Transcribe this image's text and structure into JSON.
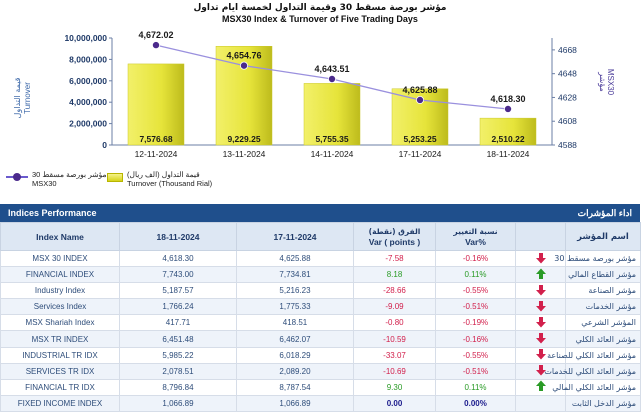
{
  "chart": {
    "title_ar": "مؤشر بورصة مسقط 30 وقيمة التداول لخمسة ايام تداول",
    "title_en": "MSX30 Index & Turnover of Five Trading Days",
    "left_axis_label_ar": "قيمة التداول",
    "left_axis_label_en": "Turnover",
    "right_axis_label_ar": "مؤشر",
    "right_axis_label_en": "MSX30"
  },
  "chart_data": {
    "type": "bar",
    "title": "MSX30 Index & Turnover of Five Trading Days",
    "categories": [
      "12-11-2024",
      "13-11-2024",
      "14-11-2024",
      "17-11-2024",
      "18-11-2024"
    ],
    "series": [
      {
        "name": "Turnover (Thousand Rial)",
        "type": "bar",
        "values": [
          7576.68,
          9229.25,
          5755.35,
          5253.25,
          2510.22
        ],
        "value_labels": [
          "7,576.68",
          "9,229.25",
          "5,755.35",
          "5,253.25",
          "2,510.22"
        ],
        "color": "#e6e43a"
      },
      {
        "name": "MSX30",
        "type": "line",
        "values": [
          4672.02,
          4654.76,
          4643.51,
          4625.88,
          4618.3
        ],
        "value_labels": [
          "4,672.02",
          "4,654.76",
          "4,643.51",
          "4,625.88",
          "4,618.30"
        ],
        "color": "#8f85d9"
      }
    ],
    "left_axis": {
      "ylim": [
        0,
        10000000
      ],
      "ticks": [
        "0",
        "2,000,000",
        "4,000,000",
        "6,000,000",
        "8,000,000",
        "10,000,000"
      ]
    },
    "right_axis": {
      "ylim": [
        4588,
        4678
      ],
      "ticks": [
        "4588",
        "4608",
        "4628",
        "4648",
        "4668"
      ]
    }
  },
  "legend": {
    "index_ar": "مؤشر بورصة مسقط 30",
    "index_en": "MSX30",
    "turnover_ar": "قيمة التداول (الف ريال)",
    "turnover_en": "Turnover (Thousand Rial)"
  },
  "table": {
    "title_en": "Indices Performance",
    "title_ar": "اداء المؤشرات",
    "headers": {
      "name": "Index Name",
      "d2": "18-11-2024",
      "d1": "17-11-2024",
      "var_ar": "الفرق (نقطة)",
      "var_en": "Var ( points )",
      "pct_ar": "نسبة التغيير",
      "pct_en": "Var%",
      "name_ar": "اسم المؤشر"
    },
    "rows": [
      {
        "name": "MSX 30 INDEX",
        "d2": "4,618.30",
        "d1": "4,625.88",
        "var": "-7.58",
        "pct": "-0.16%",
        "dir": "down",
        "name_ar": "مؤشر بورصة مسقط 30"
      },
      {
        "name": "FINANCIAL INDEX",
        "d2": "7,743.00",
        "d1": "7,734.81",
        "var": "8.18",
        "pct": "0.11%",
        "dir": "up",
        "name_ar": "مؤشر القطاع المالي"
      },
      {
        "name": "Industry Index",
        "d2": "5,187.57",
        "d1": "5,216.23",
        "var": "-28.66",
        "pct": "-0.55%",
        "dir": "down",
        "name_ar": "مؤشر الصناعة"
      },
      {
        "name": "Services Index",
        "d2": "1,766.24",
        "d1": "1,775.33",
        "var": "-9.09",
        "pct": "-0.51%",
        "dir": "down",
        "name_ar": "مؤشر الخدمات"
      },
      {
        "name": "MSX Shariah Index",
        "d2": "417.71",
        "d1": "418.51",
        "var": "-0.80",
        "pct": "-0.19%",
        "dir": "down",
        "name_ar": "المؤشر الشرعي"
      },
      {
        "name": "MSX TR INDEX",
        "d2": "6,451.48",
        "d1": "6,462.07",
        "var": "-10.59",
        "pct": "-0.16%",
        "dir": "down",
        "name_ar": "مؤشر العائد الكلي"
      },
      {
        "name": "INDUSTRIAL TR IDX",
        "d2": "5,985.22",
        "d1": "6,018.29",
        "var": "-33.07",
        "pct": "-0.55%",
        "dir": "down",
        "name_ar": "مؤشر العائد الكلي للصناعة"
      },
      {
        "name": "SERVICES TR IDX",
        "d2": "2,078.51",
        "d1": "2,089.20",
        "var": "-10.69",
        "pct": "-0.51%",
        "dir": "down",
        "name_ar": "مؤشر العائد الكلي للخدمات"
      },
      {
        "name": "FINANCIAL TR IDX",
        "d2": "8,796.84",
        "d1": "8,787.54",
        "var": "9.30",
        "pct": "0.11%",
        "dir": "up",
        "name_ar": "مؤشر العائد الكلي المالي"
      },
      {
        "name": "FIXED INCOME INDEX",
        "d2": "1,066.89",
        "d1": "1,066.89",
        "var": "0.00",
        "pct": "0.00%",
        "dir": "flat",
        "name_ar": "مؤشر الدخل الثابت"
      }
    ]
  },
  "colors": {
    "header_bar": "#1f4f8c",
    "negative": "#d2204c",
    "positive": "#2a9b26",
    "bar_fill": "#e6e43a",
    "line": "#8f85d9"
  }
}
